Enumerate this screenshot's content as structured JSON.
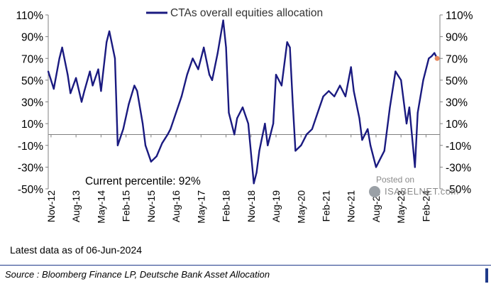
{
  "chart_data": {
    "type": "line",
    "legend": "CTAs overall equities allocation",
    "annotation": "Current percentile: 92%",
    "y_ticks": [
      "110%",
      "90%",
      "70%",
      "50%",
      "30%",
      "10%",
      "-10%",
      "-30%",
      "-50%"
    ],
    "y_tick_values": [
      110,
      90,
      70,
      50,
      30,
      10,
      -10,
      -30,
      -50
    ],
    "ylim": [
      -50,
      110
    ],
    "x_ticks": [
      "Nov-12",
      "Aug-13",
      "May-14",
      "Feb-15",
      "Nov-15",
      "Aug-16",
      "May-17",
      "Feb-18",
      "Nov-18",
      "Aug-19",
      "May-20",
      "Feb-21",
      "Nov-21",
      "Aug-22",
      "May-23",
      "Feb-24"
    ],
    "x_range": [
      "2012-10",
      "2024-07"
    ],
    "zero_line": 0,
    "dual_axis": true,
    "series": [
      {
        "name": "CTAs overall equities allocation",
        "color": "#1a1a80",
        "points": [
          [
            "2012-10",
            58
          ],
          [
            "2012-12",
            42
          ],
          [
            "2013-02",
            70
          ],
          [
            "2013-03",
            80
          ],
          [
            "2013-05",
            55
          ],
          [
            "2013-06",
            38
          ],
          [
            "2013-08",
            52
          ],
          [
            "2013-10",
            30
          ],
          [
            "2013-11",
            40
          ],
          [
            "2014-01",
            58
          ],
          [
            "2014-02",
            45
          ],
          [
            "2014-04",
            60
          ],
          [
            "2014-05",
            40
          ],
          [
            "2014-07",
            85
          ],
          [
            "2014-08",
            95
          ],
          [
            "2014-10",
            70
          ],
          [
            "2014-11",
            -10
          ],
          [
            "2015-01",
            5
          ],
          [
            "2015-03",
            28
          ],
          [
            "2015-05",
            45
          ],
          [
            "2015-06",
            40
          ],
          [
            "2015-08",
            10
          ],
          [
            "2015-09",
            -10
          ],
          [
            "2015-11",
            -25
          ],
          [
            "2016-01",
            -20
          ],
          [
            "2016-03",
            -8
          ],
          [
            "2016-05",
            0
          ],
          [
            "2016-06",
            5
          ],
          [
            "2016-08",
            20
          ],
          [
            "2016-10",
            35
          ],
          [
            "2016-12",
            55
          ],
          [
            "2017-02",
            70
          ],
          [
            "2017-04",
            60
          ],
          [
            "2017-06",
            80
          ],
          [
            "2017-08",
            55
          ],
          [
            "2017-09",
            50
          ],
          [
            "2017-11",
            75
          ],
          [
            "2018-01",
            105
          ],
          [
            "2018-02",
            80
          ],
          [
            "2018-03",
            20
          ],
          [
            "2018-05",
            0
          ],
          [
            "2018-06",
            15
          ],
          [
            "2018-08",
            25
          ],
          [
            "2018-10",
            10
          ],
          [
            "2018-12",
            -45
          ],
          [
            "2019-01",
            -35
          ],
          [
            "2019-02",
            -15
          ],
          [
            "2019-04",
            10
          ],
          [
            "2019-05",
            -10
          ],
          [
            "2019-07",
            10
          ],
          [
            "2019-08",
            55
          ],
          [
            "2019-10",
            45
          ],
          [
            "2019-12",
            85
          ],
          [
            "2020-01",
            80
          ],
          [
            "2020-02",
            30
          ],
          [
            "2020-03",
            -15
          ],
          [
            "2020-05",
            -10
          ],
          [
            "2020-07",
            0
          ],
          [
            "2020-09",
            5
          ],
          [
            "2020-11",
            20
          ],
          [
            "2021-01",
            35
          ],
          [
            "2021-03",
            40
          ],
          [
            "2021-05",
            35
          ],
          [
            "2021-07",
            45
          ],
          [
            "2021-09",
            35
          ],
          [
            "2021-11",
            62
          ],
          [
            "2021-12",
            40
          ],
          [
            "2022-02",
            15
          ],
          [
            "2022-03",
            -5
          ],
          [
            "2022-05",
            5
          ],
          [
            "2022-06",
            -10
          ],
          [
            "2022-08",
            -30
          ],
          [
            "2022-09",
            -25
          ],
          [
            "2022-11",
            -15
          ],
          [
            "2023-01",
            25
          ],
          [
            "2023-03",
            58
          ],
          [
            "2023-05",
            50
          ],
          [
            "2023-07",
            10
          ],
          [
            "2023-08",
            25
          ],
          [
            "2023-10",
            -30
          ],
          [
            "2023-11",
            20
          ],
          [
            "2024-01",
            50
          ],
          [
            "2024-03",
            70
          ],
          [
            "2024-04",
            72
          ],
          [
            "2024-05",
            75
          ],
          [
            "2024-06",
            70
          ]
        ]
      }
    ],
    "current_marker_color": "#e8875c",
    "note_date_line": "Latest data as of 06-Jun-2024",
    "source_line": "Source : Bloomberg Finance LP, Deutsche Bank Asset Allocation"
  },
  "watermark": {
    "posted": "Posted on",
    "site": "ISABELNET.com"
  }
}
